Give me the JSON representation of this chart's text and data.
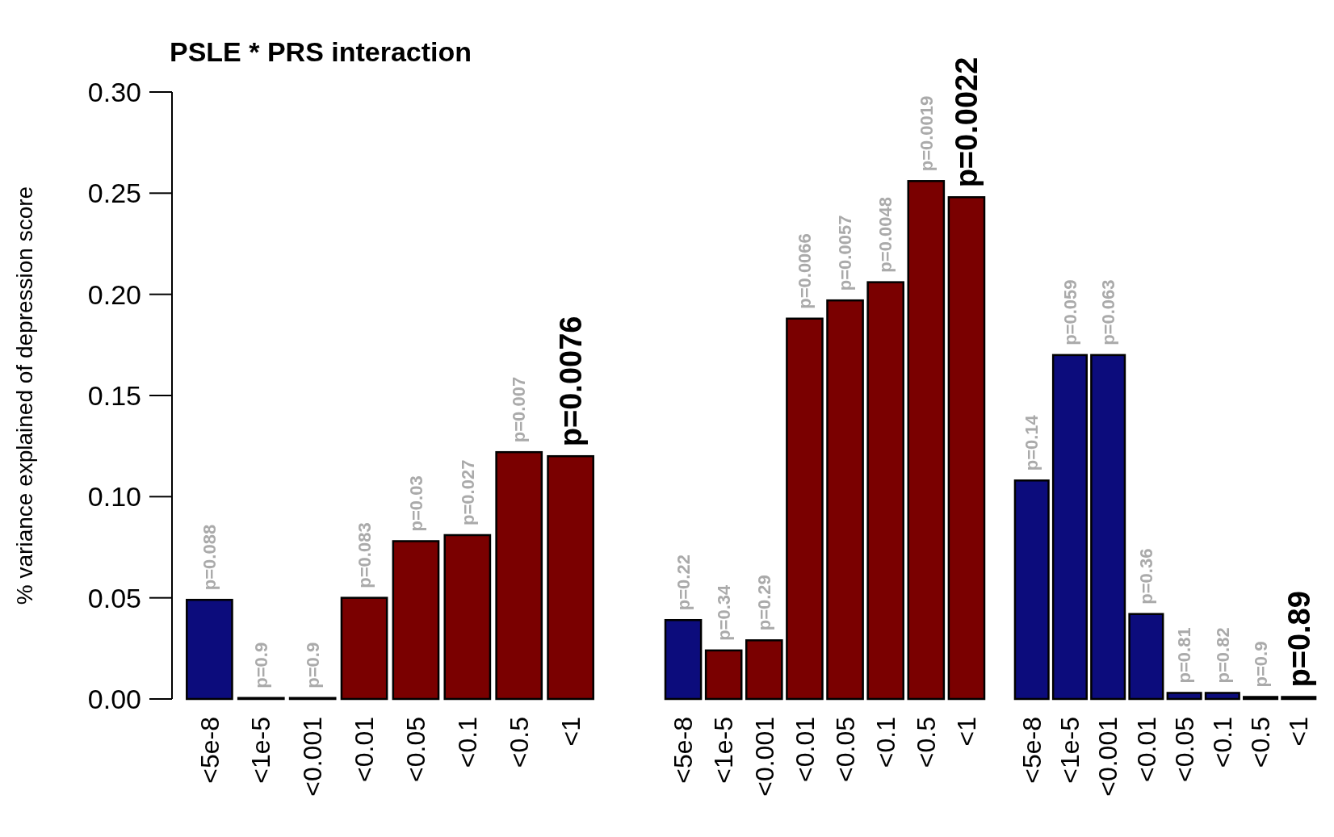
{
  "chart_data": [
    {
      "type": "bar",
      "title": "PSLE * PRS interaction",
      "ylabel": "% variance explained of depression score",
      "categories": [
        "<5e-8",
        "<1e-5",
        "<0.001",
        "<0.01",
        "<0.05",
        "<0.1",
        "<0.5",
        "<1"
      ],
      "values": [
        0.049,
        0.0005,
        0.0005,
        0.05,
        0.078,
        0.081,
        0.122,
        0.12
      ],
      "colors": [
        "#0c0c7c",
        "#7a0000",
        "#7a0000",
        "#7a0000",
        "#7a0000",
        "#7a0000",
        "#7a0000",
        "#7a0000"
      ],
      "ylim": [
        0,
        0.3
      ],
      "yticks": [
        {
          "value": 0,
          "label": "0.00"
        },
        {
          "value": 0.05,
          "label": "0.05"
        },
        {
          "value": 0.1,
          "label": "0.10"
        },
        {
          "value": 0.15,
          "label": "0.15"
        },
        {
          "value": 0.2,
          "label": "0.20"
        },
        {
          "value": 0.25,
          "label": "0.25"
        },
        {
          "value": 0.3,
          "label": "0.30"
        }
      ],
      "annotations": [
        {
          "text": "p=0.088",
          "x": "<5e-8",
          "y": 0.049
        },
        {
          "text": "p=0.9",
          "x": "<1e-5",
          "y": 0.0005
        },
        {
          "text": "p=0.9",
          "x": "<0.001",
          "y": 0.0005
        },
        {
          "text": "p=0.083",
          "x": "<0.01",
          "y": 0.05
        },
        {
          "text": "p=0.03",
          "x": "<0.05",
          "y": 0.078
        },
        {
          "text": "p=0.027",
          "x": "<0.1",
          "y": 0.081
        },
        {
          "text": "p=0.007",
          "x": "<0.5",
          "y": 0.122
        },
        {
          "text": "p=0.0076",
          "x": "<1",
          "y": 0.12
        }
      ]
    },
    {
      "type": "bar",
      "categories": [
        "<5e-8",
        "<1e-5",
        "<0.001",
        "<0.01",
        "<0.05",
        "<0.1",
        "<0.5",
        "<1"
      ],
      "values": [
        0.039,
        0.024,
        0.029,
        0.188,
        0.197,
        0.206,
        0.256,
        0.248
      ],
      "colors": [
        "#0c0c7c",
        "#7a0000",
        "#7a0000",
        "#7a0000",
        "#7a0000",
        "#7a0000",
        "#7a0000",
        "#7a0000"
      ],
      "ylim": [
        0,
        0.3
      ],
      "tick_labels": "x",
      "annotations": [
        {
          "text": "p=0.22",
          "x": "<5e-8",
          "y": 0.039
        },
        {
          "text": "p=0.34",
          "x": "<1e-5",
          "y": 0.024
        },
        {
          "text": "p=0.29",
          "x": "<0.001",
          "y": 0.029
        },
        {
          "text": "p=0.0066",
          "x": "<0.01",
          "y": 0.188
        },
        {
          "text": "p=0.0057",
          "x": "<0.05",
          "y": 0.197
        },
        {
          "text": "p=0.0048",
          "x": "<0.1",
          "y": 0.206
        },
        {
          "text": "p=0.0019",
          "x": "<0.5",
          "y": 0.256
        },
        {
          "text": "p=0.0022",
          "x": "<1",
          "y": 0.248
        }
      ]
    },
    {
      "type": "bar",
      "categories": [
        "<5e-8",
        "<1e-5",
        "<0.001",
        "<0.01",
        "<0.05",
        "<0.1",
        "<0.5",
        "<1"
      ],
      "values": [
        0.108,
        0.17,
        0.17,
        0.042,
        0.003,
        0.003,
        0.001,
        0.001
      ],
      "colors": [
        "#0c0c7c",
        "#0c0c7c",
        "#0c0c7c",
        "#0c0c7c",
        "#0c0c7c",
        "#0c0c7c",
        "#0c0c7c",
        "#0c0c7c"
      ],
      "ylim": [
        0,
        0.3
      ],
      "tick_labels": "x",
      "annotations": [
        {
          "text": "p=0.14",
          "x": "<5e-8",
          "y": 0.108
        },
        {
          "text": "p=0.059",
          "x": "<1e-5",
          "y": 0.17
        },
        {
          "text": "p=0.063",
          "x": "<0.001",
          "y": 0.17
        },
        {
          "text": "p=0.36",
          "x": "<0.01",
          "y": 0.042
        },
        {
          "text": "p=0.81",
          "x": "<0.05",
          "y": 0.003
        },
        {
          "text": "p=0.82",
          "x": "<0.1",
          "y": 0.003
        },
        {
          "text": "p=0.9",
          "x": "<0.5",
          "y": 0.001
        },
        {
          "text": "p=0.89",
          "x": "<1",
          "y": 0.001
        }
      ]
    }
  ]
}
